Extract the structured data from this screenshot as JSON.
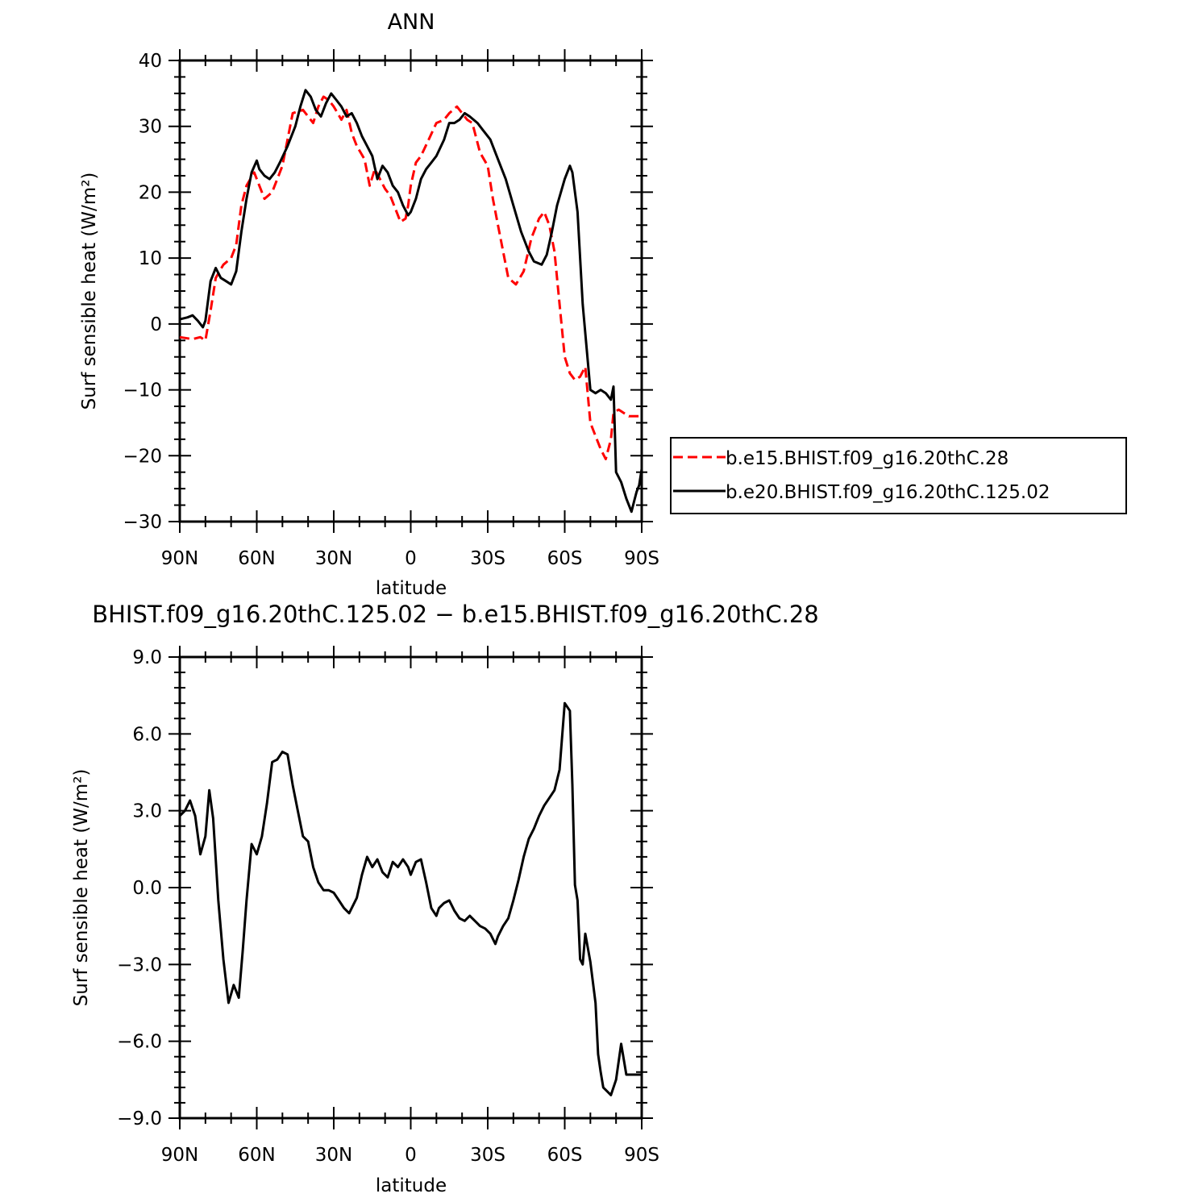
{
  "chart_data": [
    {
      "type": "line",
      "title": "ANN",
      "xlabel": "latitude",
      "ylabel": "Surf sensible heat (W/m²)",
      "xlim": [
        90,
        -90
      ],
      "ylim": [
        -30,
        40
      ],
      "xticks": [
        90,
        60,
        30,
        0,
        -30,
        -60,
        -90
      ],
      "xtick_labels": [
        "90N",
        "60N",
        "30N",
        "0",
        "30S",
        "60S",
        "90S"
      ],
      "yticks": [
        -30,
        -20,
        -10,
        0,
        10,
        20,
        30,
        40
      ],
      "ytick_labels": [
        "−30",
        "−20",
        "−10",
        "0",
        "10",
        "20",
        "30",
        "40"
      ],
      "legend_position": "right",
      "series": [
        {
          "name": "b.e15.BHIST.f09_g16.20thC.28",
          "color": "#ff0000",
          "dash": "dashed",
          "x": [
            90,
            85,
            82,
            80,
            78,
            76,
            73,
            70,
            68,
            66,
            64,
            61,
            59,
            57,
            54,
            50,
            46,
            42,
            38,
            36,
            34,
            32,
            30,
            27,
            25,
            23,
            21,
            18,
            16,
            14,
            12,
            10,
            8,
            6,
            4,
            2,
            1,
            0,
            -2,
            -4,
            -7,
            -10,
            -13,
            -15,
            -18,
            -20,
            -22,
            -24,
            -27,
            -30,
            -32,
            -34,
            -36,
            -38,
            -41,
            -44,
            -47,
            -50,
            -52,
            -54,
            -56,
            -58,
            -60,
            -62,
            -64,
            -66,
            -68,
            -70,
            -72,
            -74,
            -76,
            -77,
            -78,
            -79,
            -81,
            -83,
            -85,
            -87,
            -89,
            -90
          ],
          "y": [
            -2,
            -2.3,
            -2,
            -2.5,
            2,
            7,
            9,
            10,
            12,
            18,
            21,
            23,
            21,
            19,
            20,
            24,
            32,
            32.5,
            30.5,
            33,
            34.5,
            34,
            33,
            31,
            32.5,
            29,
            27,
            25,
            21,
            23.5,
            22,
            20.5,
            19.5,
            17.5,
            15.5,
            16,
            18,
            21,
            24.5,
            25.5,
            28,
            30.5,
            31,
            32,
            33,
            32,
            31,
            30.5,
            26,
            24,
            19,
            15,
            11,
            7,
            6,
            8,
            13,
            16,
            17,
            15,
            11,
            3,
            -5,
            -7.5,
            -8.5,
            -8,
            -6.5,
            -15,
            -17,
            -19,
            -20.5,
            -19,
            -17.5,
            -13.5,
            -13,
            -13.5,
            -14,
            -14,
            -14,
            -14
          ]
        },
        {
          "name": "b.e20.BHIST.f09_g16.20thC.125.02",
          "color": "#000000",
          "dash": "solid",
          "x": [
            90,
            87,
            85,
            83,
            81,
            80,
            78,
            76,
            74,
            72,
            70,
            68,
            66,
            64,
            62,
            60,
            59,
            57,
            55,
            53,
            51,
            48,
            45,
            43,
            41,
            39,
            37,
            35,
            33,
            31,
            29,
            27,
            25,
            23,
            21,
            19,
            17,
            15,
            13,
            11,
            9,
            7,
            5,
            3,
            1,
            0,
            -2,
            -4,
            -6,
            -8,
            -10,
            -13,
            -15,
            -17,
            -19,
            -21,
            -23,
            -26,
            -28,
            -31,
            -34,
            -37,
            -40,
            -43,
            -46,
            -48,
            -51,
            -53,
            -55,
            -57,
            -60,
            -62,
            -63,
            -65,
            -67,
            -70,
            -72,
            -74,
            -76,
            -78,
            -79,
            -80,
            -82,
            -84,
            -86,
            -87,
            -88,
            -89,
            -90
          ],
          "y": [
            0.7,
            1,
            1.3,
            0.5,
            -0.5,
            0.5,
            6.5,
            8.5,
            7,
            6.5,
            6,
            8,
            14,
            19,
            23,
            24.8,
            23.5,
            22.5,
            22,
            23,
            24.5,
            27,
            30,
            33,
            35.5,
            34.5,
            32.5,
            31.5,
            33.5,
            35,
            34,
            33,
            31.5,
            32,
            30.5,
            28.5,
            27,
            25.5,
            22,
            24,
            23,
            21,
            20,
            18,
            16.5,
            17,
            19,
            22,
            23.5,
            24.5,
            25.5,
            28,
            30.5,
            30.5,
            31,
            32,
            31.5,
            30.5,
            29.5,
            28,
            25,
            22,
            18,
            14,
            11,
            9.5,
            9,
            10.5,
            14,
            18,
            22,
            24,
            23,
            17,
            3,
            -10,
            -10.5,
            -10,
            -10.5,
            -11.5,
            -9.5,
            -22.5,
            -24,
            -26.5,
            -28.5,
            -27,
            -25.5,
            -24.5,
            -22
          ]
        }
      ]
    },
    {
      "type": "line",
      "title": "BHIST.f09_g16.20thC.125.02 − b.e15.BHIST.f09_g16.20thC.28",
      "xlabel": "latitude",
      "ylabel": "Surf sensible heat (W/m²)",
      "xlim": [
        90,
        -90
      ],
      "ylim": [
        -9,
        9
      ],
      "xticks": [
        90,
        60,
        30,
        0,
        -30,
        -60,
        -90
      ],
      "xtick_labels": [
        "90N",
        "60N",
        "30N",
        "0",
        "30S",
        "60S",
        "90S"
      ],
      "yticks": [
        -9,
        -6,
        -3,
        0,
        3,
        6,
        9
      ],
      "ytick_labels": [
        "−9.0",
        "−6.0",
        "−3.0",
        "0.0",
        "3.0",
        "6.0",
        "9.0"
      ],
      "series": [
        {
          "name": "",
          "color": "#000000",
          "dash": "solid",
          "x": [
            90,
            88,
            86,
            84,
            82,
            80,
            78.5,
            77,
            75,
            73,
            71,
            69,
            67,
            65.5,
            64,
            62,
            60,
            58,
            56,
            54,
            52,
            50,
            48,
            46,
            44,
            42,
            40,
            38,
            36,
            34,
            32,
            30,
            28,
            26,
            24,
            21,
            19,
            17,
            15,
            13,
            11,
            9,
            7,
            5,
            3,
            1,
            0,
            -2,
            -4,
            -6,
            -8,
            -10,
            -11,
            -13,
            -15,
            -17,
            -19,
            -21,
            -23,
            -25,
            -27,
            -29,
            -31,
            -33,
            -34,
            -36,
            -38,
            -40,
            -42,
            -44,
            -46,
            -48,
            -50,
            -52,
            -54,
            -56,
            -58,
            -60,
            -62,
            -63,
            -64,
            -65,
            -66,
            -67,
            -68,
            -70,
            -72,
            -73,
            -74,
            -75,
            -77,
            -78,
            -80,
            -82,
            -84,
            -85,
            -86,
            -88,
            -90
          ],
          "y": [
            2.8,
            3,
            3.4,
            2.8,
            1.3,
            2,
            3.8,
            2.7,
            -0.5,
            -2.8,
            -4.5,
            -3.8,
            -4.3,
            -2.5,
            -0.5,
            1.7,
            1.3,
            2,
            3.3,
            4.9,
            5,
            5.3,
            5.2,
            4,
            3,
            2,
            1.8,
            0.8,
            0.2,
            -0.1,
            -0.1,
            -0.2,
            -0.5,
            -0.8,
            -1,
            -0.4,
            0.5,
            1.2,
            0.8,
            1.1,
            0.6,
            0.4,
            1,
            0.8,
            1.1,
            0.8,
            0.5,
            1,
            1.1,
            0.2,
            -0.8,
            -1.1,
            -0.8,
            -0.6,
            -0.5,
            -0.9,
            -1.2,
            -1.3,
            -1.1,
            -1.3,
            -1.5,
            -1.6,
            -1.8,
            -2.2,
            -1.9,
            -1.5,
            -1.2,
            -0.5,
            0.3,
            1.2,
            1.9,
            2.3,
            2.8,
            3.2,
            3.5,
            3.8,
            4.6,
            7.2,
            6.9,
            4,
            0.1,
            -0.5,
            -2.8,
            -3,
            -1.8,
            -2.9,
            -4.5,
            -6.5,
            -7.2,
            -7.8,
            -8,
            -8.1,
            -7.5,
            -6.1,
            -7.3,
            -7.3,
            -7.3,
            -7.3,
            -7.3
          ]
        }
      ]
    }
  ]
}
